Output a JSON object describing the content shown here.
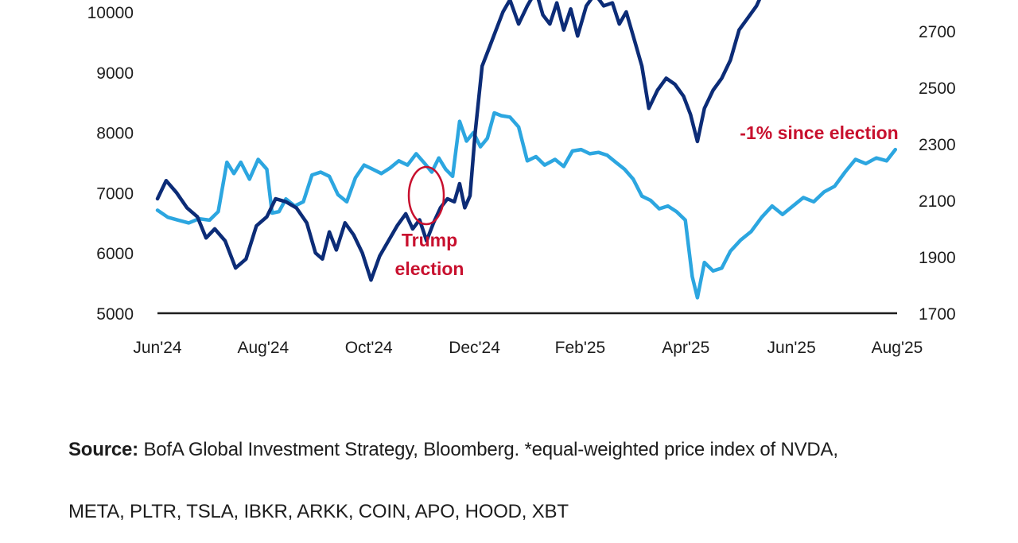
{
  "chart_data": {
    "type": "line",
    "x_ticks": [
      "Jun'24",
      "Aug'24",
      "Oct'24",
      "Dec'24",
      "Feb'25",
      "Apr'25",
      "Jun'25",
      "Aug'25"
    ],
    "x_range": [
      "2024-06-01",
      "2025-08-01"
    ],
    "left_axis": {
      "ticks": [
        5000,
        6000,
        7000,
        8000,
        9000,
        10000
      ],
      "range": [
        5000,
        10300
      ]
    },
    "right_axis": {
      "ticks": [
        1700,
        1900,
        2100,
        2300,
        2500,
        2700
      ],
      "range": [
        1700,
        2780
      ]
    },
    "grid": false,
    "series": [
      {
        "axis": "left",
        "color": "#0c2c77",
        "points": [
          [
            "2024-06-01",
            6900
          ],
          [
            "2024-06-06",
            7200
          ],
          [
            "2024-06-12",
            7000
          ],
          [
            "2024-06-18",
            6750
          ],
          [
            "2024-06-24",
            6600
          ],
          [
            "2024-06-29",
            6250
          ],
          [
            "2024-07-04",
            6400
          ],
          [
            "2024-07-10",
            6200
          ],
          [
            "2024-07-16",
            5750
          ],
          [
            "2024-07-22",
            5900
          ],
          [
            "2024-07-28",
            6450
          ],
          [
            "2024-08-03",
            6600
          ],
          [
            "2024-08-08",
            6900
          ],
          [
            "2024-08-14",
            6850
          ],
          [
            "2024-08-20",
            6750
          ],
          [
            "2024-08-26",
            6500
          ],
          [
            "2024-08-31",
            6000
          ],
          [
            "2024-09-04",
            5900
          ],
          [
            "2024-09-08",
            6350
          ],
          [
            "2024-09-12",
            6050
          ],
          [
            "2024-09-17",
            6500
          ],
          [
            "2024-09-22",
            6300
          ],
          [
            "2024-09-27",
            6000
          ],
          [
            "2024-10-02",
            5550
          ],
          [
            "2024-10-07",
            5950
          ],
          [
            "2024-10-12",
            6200
          ],
          [
            "2024-10-17",
            6450
          ],
          [
            "2024-10-22",
            6650
          ],
          [
            "2024-10-26",
            6400
          ],
          [
            "2024-10-30",
            6550
          ],
          [
            "2024-11-03",
            6200
          ],
          [
            "2024-11-07",
            6500
          ],
          [
            "2024-11-11",
            6750
          ],
          [
            "2024-11-15",
            6900
          ],
          [
            "2024-11-19",
            6850
          ],
          [
            "2024-11-22",
            7150
          ],
          [
            "2024-11-25",
            6750
          ],
          [
            "2024-11-28",
            6950
          ],
          [
            "2024-12-01",
            8000
          ],
          [
            "2024-12-05",
            9100
          ],
          [
            "2024-12-09",
            9400
          ],
          [
            "2024-12-13",
            9700
          ],
          [
            "2024-12-17",
            10000
          ],
          [
            "2024-12-21",
            10200
          ],
          [
            "2024-12-26",
            9800
          ],
          [
            "2024-12-31",
            10100
          ],
          [
            "2025-01-05",
            10350
          ],
          [
            "2025-01-09",
            9950
          ],
          [
            "2025-01-13",
            9800
          ],
          [
            "2025-01-17",
            10150
          ],
          [
            "2025-01-21",
            9700
          ],
          [
            "2025-01-25",
            10050
          ],
          [
            "2025-01-29",
            9600
          ],
          [
            "2025-02-03",
            10100
          ],
          [
            "2025-02-08",
            10300
          ],
          [
            "2025-02-13",
            10100
          ],
          [
            "2025-02-18",
            10150
          ],
          [
            "2025-02-22",
            9800
          ],
          [
            "2025-02-26",
            10000
          ],
          [
            "2025-03-03",
            9500
          ],
          [
            "2025-03-07",
            9100
          ],
          [
            "2025-03-11",
            8400
          ],
          [
            "2025-03-16",
            8700
          ],
          [
            "2025-03-21",
            8900
          ],
          [
            "2025-03-26",
            8800
          ],
          [
            "2025-03-31",
            8600
          ],
          [
            "2025-04-04",
            8300
          ],
          [
            "2025-04-08",
            7850
          ],
          [
            "2025-04-12",
            8400
          ],
          [
            "2025-04-17",
            8700
          ],
          [
            "2025-04-22",
            8900
          ],
          [
            "2025-04-27",
            9200
          ],
          [
            "2025-05-02",
            9700
          ],
          [
            "2025-05-07",
            9900
          ],
          [
            "2025-05-12",
            10100
          ],
          [
            "2025-05-16",
            10350
          ],
          [
            "2025-05-20",
            10450
          ],
          [
            "2025-05-27",
            10400
          ],
          [
            "2025-06-05",
            10350
          ]
        ]
      },
      {
        "axis": "right",
        "color": "#2ca6e0",
        "points": [
          [
            "2024-06-01",
            2065
          ],
          [
            "2024-06-07",
            2040
          ],
          [
            "2024-06-13",
            2030
          ],
          [
            "2024-06-19",
            2020
          ],
          [
            "2024-06-25",
            2035
          ],
          [
            "2024-07-01",
            2030
          ],
          [
            "2024-07-06",
            2060
          ],
          [
            "2024-07-11",
            2235
          ],
          [
            "2024-07-15",
            2195
          ],
          [
            "2024-07-19",
            2235
          ],
          [
            "2024-07-24",
            2175
          ],
          [
            "2024-07-29",
            2245
          ],
          [
            "2024-08-03",
            2210
          ],
          [
            "2024-08-06",
            2055
          ],
          [
            "2024-08-10",
            2060
          ],
          [
            "2024-08-14",
            2105
          ],
          [
            "2024-08-19",
            2080
          ],
          [
            "2024-08-24",
            2095
          ],
          [
            "2024-08-29",
            2190
          ],
          [
            "2024-09-03",
            2200
          ],
          [
            "2024-09-08",
            2185
          ],
          [
            "2024-09-13",
            2120
          ],
          [
            "2024-09-18",
            2095
          ],
          [
            "2024-09-23",
            2180
          ],
          [
            "2024-09-28",
            2225
          ],
          [
            "2024-10-03",
            2210
          ],
          [
            "2024-10-08",
            2195
          ],
          [
            "2024-10-13",
            2215
          ],
          [
            "2024-10-18",
            2240
          ],
          [
            "2024-10-23",
            2225
          ],
          [
            "2024-10-28",
            2265
          ],
          [
            "2024-11-02",
            2230
          ],
          [
            "2024-11-06",
            2200
          ],
          [
            "2024-11-10",
            2250
          ],
          [
            "2024-11-14",
            2210
          ],
          [
            "2024-11-18",
            2185
          ],
          [
            "2024-11-22",
            2380
          ],
          [
            "2024-11-26",
            2310
          ],
          [
            "2024-11-30",
            2340
          ],
          [
            "2024-12-04",
            2290
          ],
          [
            "2024-12-08",
            2320
          ],
          [
            "2024-12-12",
            2410
          ],
          [
            "2024-12-16",
            2400
          ],
          [
            "2024-12-21",
            2395
          ],
          [
            "2024-12-26",
            2360
          ],
          [
            "2024-12-31",
            2240
          ],
          [
            "2025-01-05",
            2255
          ],
          [
            "2025-01-10",
            2225
          ],
          [
            "2025-01-16",
            2245
          ],
          [
            "2025-01-21",
            2220
          ],
          [
            "2025-01-26",
            2275
          ],
          [
            "2025-01-31",
            2280
          ],
          [
            "2025-02-05",
            2265
          ],
          [
            "2025-02-10",
            2270
          ],
          [
            "2025-02-15",
            2260
          ],
          [
            "2025-02-20",
            2235
          ],
          [
            "2025-02-25",
            2210
          ],
          [
            "2025-03-02",
            2175
          ],
          [
            "2025-03-07",
            2115
          ],
          [
            "2025-03-12",
            2100
          ],
          [
            "2025-03-17",
            2070
          ],
          [
            "2025-03-22",
            2080
          ],
          [
            "2025-03-27",
            2060
          ],
          [
            "2025-04-01",
            2030
          ],
          [
            "2025-04-05",
            1830
          ],
          [
            "2025-04-08",
            1755
          ],
          [
            "2025-04-12",
            1880
          ],
          [
            "2025-04-17",
            1850
          ],
          [
            "2025-04-22",
            1860
          ],
          [
            "2025-04-27",
            1920
          ],
          [
            "2025-05-03",
            1960
          ],
          [
            "2025-05-09",
            1990
          ],
          [
            "2025-05-15",
            2040
          ],
          [
            "2025-05-21",
            2080
          ],
          [
            "2025-05-27",
            2050
          ],
          [
            "2025-06-02",
            2080
          ],
          [
            "2025-06-08",
            2110
          ],
          [
            "2025-06-14",
            2095
          ],
          [
            "2025-06-20",
            2130
          ],
          [
            "2025-06-26",
            2150
          ],
          [
            "2025-07-02",
            2200
          ],
          [
            "2025-07-08",
            2245
          ],
          [
            "2025-07-14",
            2230
          ],
          [
            "2025-07-20",
            2250
          ],
          [
            "2025-07-26",
            2240
          ],
          [
            "2025-07-31",
            2280
          ]
        ]
      }
    ],
    "annotations": [
      {
        "text_lines": [
          "Trump",
          "election"
        ],
        "target_date": "2024-11-24",
        "color": "#c8102e"
      },
      {
        "text": "-1% since election",
        "color": "#c8102e"
      }
    ]
  },
  "source": {
    "label": "Source:",
    "line1": "BofA Global Investment Strategy, Bloomberg. *equal-weighted price index of NVDA,",
    "line2": "META, PLTR, TSLA, IBKR, ARKK, COIN, APO, HOOD, XBT"
  }
}
